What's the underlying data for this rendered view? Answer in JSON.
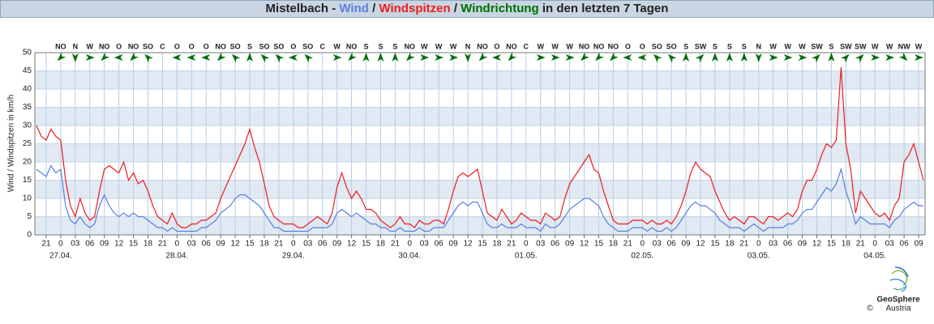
{
  "chart_data": {
    "type": "line",
    "title_prefix": "Mistelbach - ",
    "separator": " / ",
    "direction_name": "Windrichtung",
    "direction_color": "#006e00",
    "title_suffix": " in den letzten 7 Tagen",
    "ylabel": "Wind / Windspitzen in km/h",
    "ylim": [
      0,
      50
    ],
    "yticks": [
      0,
      5,
      10,
      15,
      20,
      25,
      30,
      35,
      40,
      45,
      50
    ],
    "grid": true,
    "categories": [
      null,
      null,
      "21",
      null,
      null,
      "0",
      null,
      null,
      "03",
      null,
      null,
      "06",
      null,
      null,
      "09",
      null,
      null,
      "12",
      null,
      null,
      "15",
      null,
      null,
      "18",
      null,
      null,
      "21",
      null,
      null,
      "0",
      null,
      null,
      "03",
      null,
      null,
      "06",
      null,
      null,
      "09",
      null,
      null,
      "12",
      null,
      null,
      "15",
      null,
      null,
      "18",
      null,
      null,
      "21",
      null,
      null,
      "0",
      null,
      null,
      "03",
      null,
      null,
      "06",
      null,
      null,
      "09",
      null,
      null,
      "12",
      null,
      null,
      "15",
      null,
      null,
      "18",
      null,
      null,
      "21",
      null,
      null,
      "0",
      null,
      null,
      "03",
      null,
      null,
      "06",
      null,
      null,
      "09",
      null,
      null,
      "12",
      null,
      null,
      "15",
      null,
      null,
      "18",
      null,
      null,
      "21",
      null,
      null,
      "0",
      null,
      null,
      "03",
      null,
      null,
      "06",
      null,
      null,
      "09",
      null,
      null,
      "12",
      null,
      null,
      "15",
      null,
      null,
      "18",
      null,
      null,
      "21",
      null,
      null,
      "0",
      null,
      null,
      "03",
      null,
      null,
      "06",
      null,
      null,
      "09",
      null,
      null,
      "12",
      null,
      null,
      "15",
      null,
      null,
      "18",
      null,
      null,
      "21",
      null,
      null,
      "0",
      null,
      null,
      "03",
      null,
      null,
      "06",
      null,
      null,
      "09",
      null,
      null,
      "12",
      null,
      null,
      "15",
      null,
      null,
      "18",
      null,
      null,
      "21",
      null,
      null,
      "0",
      null,
      null,
      "03",
      null,
      null,
      "06",
      null,
      null,
      "09",
      null
    ],
    "dates": [
      null,
      null,
      null,
      null,
      null,
      "27.04.",
      null,
      null,
      null,
      null,
      null,
      null,
      null,
      null,
      null,
      null,
      null,
      null,
      null,
      null,
      null,
      null,
      null,
      null,
      null,
      null,
      null,
      null,
      null,
      "28.04.",
      null,
      null,
      null,
      null,
      null,
      null,
      null,
      null,
      null,
      null,
      null,
      null,
      null,
      null,
      null,
      null,
      null,
      null,
      null,
      null,
      null,
      null,
      null,
      "29.04.",
      null,
      null,
      null,
      null,
      null,
      null,
      null,
      null,
      null,
      null,
      null,
      null,
      null,
      null,
      null,
      null,
      null,
      null,
      null,
      null,
      null,
      null,
      null,
      "30.04.",
      null,
      null,
      null,
      null,
      null,
      null,
      null,
      null,
      null,
      null,
      null,
      null,
      null,
      null,
      null,
      null,
      null,
      null,
      null,
      null,
      null,
      null,
      null,
      "01.05.",
      null,
      null,
      null,
      null,
      null,
      null,
      null,
      null,
      null,
      null,
      null,
      null,
      null,
      null,
      null,
      null,
      null,
      null,
      null,
      null,
      null,
      null,
      null,
      "02.05.",
      null,
      null,
      null,
      null,
      null,
      null,
      null,
      null,
      null,
      null,
      null,
      null,
      null,
      null,
      null,
      null,
      null,
      null,
      null,
      null,
      null,
      null,
      null,
      "03.05.",
      null,
      null,
      null,
      null,
      null,
      null,
      null,
      null,
      null,
      null,
      null,
      null,
      null,
      null,
      null,
      null,
      null,
      null,
      null,
      null,
      null,
      null,
      null,
      "04.05.",
      null,
      null,
      null,
      null,
      null,
      null,
      null,
      null,
      null,
      null
    ],
    "directions": [
      null,
      null,
      null,
      null,
      null,
      "NO",
      null,
      null,
      "N",
      null,
      null,
      "W",
      null,
      null,
      "NO",
      null,
      null,
      "O",
      null,
      null,
      "NO",
      null,
      null,
      "SO",
      null,
      null,
      "C",
      null,
      null,
      "O",
      null,
      null,
      "O",
      null,
      null,
      "O",
      null,
      null,
      "NO",
      null,
      null,
      "SO",
      null,
      null,
      "S",
      null,
      null,
      "SO",
      null,
      null,
      "SO",
      null,
      null,
      "O",
      null,
      null,
      "SO",
      null,
      null,
      "C",
      null,
      null,
      "W",
      null,
      null,
      "NO",
      null,
      null,
      "S",
      null,
      null,
      "S",
      null,
      null,
      "S",
      null,
      null,
      "NO",
      null,
      null,
      "W",
      null,
      null,
      "W",
      null,
      null,
      "W",
      null,
      null,
      "N",
      null,
      null,
      "NO",
      null,
      null,
      "O",
      null,
      null,
      "NO",
      null,
      null,
      "C",
      null,
      null,
      "W",
      null,
      null,
      "W",
      null,
      null,
      "W",
      null,
      null,
      "NO",
      null,
      null,
      "NO",
      null,
      null,
      "NO",
      null,
      null,
      "O",
      null,
      null,
      "O",
      null,
      null,
      "SO",
      null,
      null,
      "SO",
      null,
      null,
      "S",
      null,
      null,
      "SW",
      null,
      null,
      "S",
      null,
      null,
      "S",
      null,
      null,
      "S",
      null,
      null,
      "N",
      null,
      null,
      "W",
      null,
      null,
      "W",
      null,
      null,
      "W",
      null,
      null,
      "SW",
      null,
      null,
      "S",
      null,
      null,
      "SW",
      null,
      null,
      "SW",
      null,
      null,
      "W",
      null,
      null,
      "W",
      null,
      null,
      "NW",
      null,
      null,
      "W",
      null
    ],
    "series": [
      {
        "name": "Windspitzen",
        "color": "#ee1c1c",
        "values": [
          30,
          27,
          26,
          29,
          27,
          26,
          15,
          8,
          5,
          10,
          6,
          4,
          5,
          12,
          18,
          19,
          18,
          17,
          20,
          15,
          17,
          14,
          15,
          12,
          8,
          5,
          4,
          3,
          6,
          3,
          2,
          2,
          3,
          3,
          4,
          4,
          5,
          6,
          10,
          13,
          16,
          19,
          22,
          25,
          29,
          24,
          20,
          14,
          8,
          5,
          4,
          3,
          3,
          3,
          2,
          2,
          3,
          4,
          5,
          4,
          3,
          6,
          13,
          17,
          13,
          10,
          12,
          10,
          7,
          7,
          6,
          4,
          3,
          2,
          3,
          5,
          3,
          3,
          2,
          4,
          3,
          3,
          4,
          4,
          3,
          7,
          12,
          16,
          17,
          16,
          17,
          18,
          12,
          6,
          5,
          4,
          7,
          5,
          3,
          4,
          6,
          5,
          4,
          4,
          3,
          6,
          5,
          4,
          5,
          10,
          14,
          16,
          18,
          20,
          22,
          18,
          17,
          12,
          8,
          4,
          3,
          3,
          3,
          4,
          4,
          4,
          3,
          4,
          3,
          3,
          4,
          3,
          5,
          8,
          12,
          17,
          20,
          18,
          17,
          16,
          12,
          9,
          6,
          4,
          5,
          4,
          3,
          5,
          5,
          4,
          3,
          5,
          5,
          4,
          5,
          6,
          5,
          7,
          12,
          15,
          15,
          18,
          22,
          25,
          24,
          26,
          46,
          25,
          18,
          6,
          12,
          10,
          8,
          6,
          5,
          6,
          4,
          8,
          10,
          20,
          22,
          25,
          20,
          15
        ]
      },
      {
        "name": "Wind",
        "color": "#5a7fe0",
        "values": [
          18,
          17,
          16,
          19,
          17,
          18,
          8,
          4,
          3,
          5,
          3,
          2,
          3,
          8,
          11,
          8,
          6,
          5,
          6,
          5,
          6,
          5,
          5,
          4,
          3,
          2,
          2,
          1,
          2,
          1,
          1,
          1,
          1,
          1,
          2,
          2,
          3,
          4,
          6,
          7,
          8,
          10,
          11,
          11,
          10,
          9,
          8,
          6,
          4,
          2,
          2,
          1,
          1,
          1,
          1,
          1,
          1,
          2,
          2,
          2,
          2,
          3,
          6,
          7,
          6,
          5,
          6,
          5,
          4,
          3,
          3,
          2,
          2,
          1,
          1,
          2,
          1,
          1,
          1,
          2,
          1,
          1,
          2,
          2,
          2,
          4,
          6,
          8,
          9,
          8,
          9,
          9,
          6,
          3,
          2,
          2,
          3,
          2,
          2,
          2,
          3,
          2,
          2,
          2,
          1,
          3,
          2,
          2,
          3,
          5,
          7,
          8,
          9,
          10,
          10,
          9,
          8,
          5,
          3,
          2,
          1,
          1,
          1,
          2,
          2,
          2,
          1,
          2,
          1,
          1,
          2,
          1,
          2,
          4,
          6,
          8,
          9,
          8,
          8,
          7,
          6,
          4,
          3,
          2,
          2,
          2,
          1,
          2,
          3,
          2,
          1,
          2,
          2,
          2,
          2,
          3,
          3,
          4,
          6,
          7,
          7,
          9,
          11,
          13,
          12,
          14,
          18,
          12,
          8,
          3,
          5,
          4,
          3,
          3,
          3,
          3,
          2,
          4,
          5,
          7,
          8,
          9,
          8,
          8
        ]
      }
    ],
    "logo_name": "GeoSphere",
    "logo_sub": "Austria",
    "copyright": "©"
  }
}
